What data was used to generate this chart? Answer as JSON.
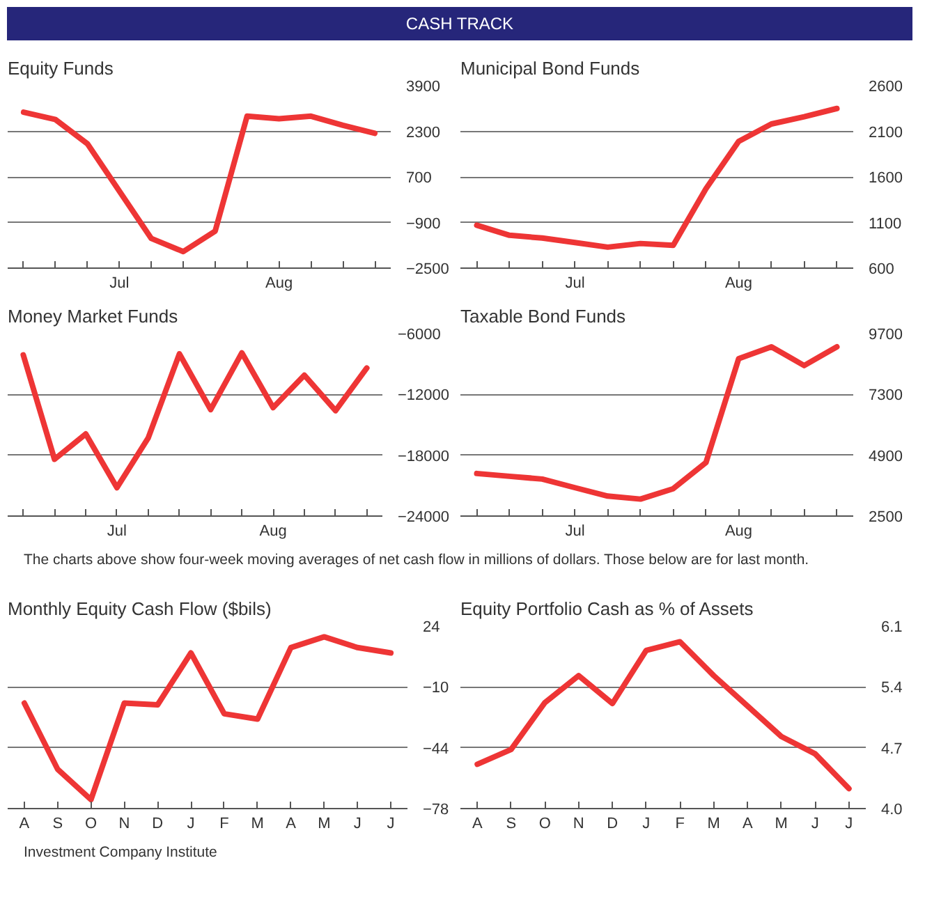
{
  "chart_data": [
    {
      "type": "other",
      "title": "CASH TRACK"
    },
    {
      "type": "line",
      "title": "Equity Funds",
      "color": "#ee3535",
      "grid": "y",
      "categories": [
        null,
        null,
        null,
        "Jul",
        null,
        null,
        null,
        null,
        "Aug",
        null,
        null,
        null
      ],
      "values": [
        2970,
        2710,
        1860,
        200,
        -1460,
        -1920,
        -1200,
        2830,
        2740,
        2830,
        2510,
        2230
      ],
      "ylim": [
        -2500,
        3900
      ],
      "yticks": [
        -2500,
        -900,
        700,
        2300,
        3900
      ]
    },
    {
      "type": "line",
      "title": "Municipal Bond Funds",
      "color": "#ee3535",
      "grid": "y",
      "categories": [
        null,
        null,
        null,
        "Jul",
        null,
        null,
        null,
        null,
        "Aug",
        null,
        null,
        null
      ],
      "values": [
        1070,
        960,
        930,
        880,
        830,
        870,
        850,
        1470,
        1990,
        2180,
        2260,
        2350
      ],
      "ylim": [
        600,
        2600
      ],
      "yticks": [
        600,
        1100,
        1600,
        2100,
        2600
      ]
    },
    {
      "type": "line",
      "title": "Money Market Funds",
      "color": "#ee3535",
      "grid": "y",
      "categories": [
        null,
        null,
        null,
        "Jul",
        null,
        null,
        null,
        null,
        "Aug",
        null,
        null,
        null
      ],
      "values": [
        -8100,
        -18400,
        -15900,
        -21200,
        -16300,
        -8000,
        -13500,
        -7900,
        -13300,
        -10100,
        -13600,
        -9400
      ],
      "ylim": [
        -24000,
        -6000
      ],
      "yticks": [
        -24000,
        -18000,
        -12000,
        -6000
      ]
    },
    {
      "type": "line",
      "title": "Taxable Bond Funds",
      "color": "#ee3535",
      "grid": "y",
      "categories": [
        null,
        null,
        null,
        "Jul",
        null,
        null,
        null,
        null,
        "Aug",
        null,
        null,
        null
      ],
      "values": [
        4180,
        4070,
        3960,
        3620,
        3290,
        3170,
        3580,
        4610,
        8710,
        9180,
        8440,
        9180
      ],
      "ylim": [
        2500,
        9700
      ],
      "yticks": [
        2500,
        4900,
        7300,
        9700
      ]
    },
    {
      "type": "other",
      "annotations": [
        "The charts above show four-week moving averages of net cash flow in millions of dollars. Those below are for last month."
      ]
    },
    {
      "type": "line",
      "title": "Monthly Equity Cash Flow ($bils)",
      "color": "#ee3535",
      "grid": "y",
      "categories": [
        "A",
        "S",
        "O",
        "N",
        "D",
        "J",
        "F",
        "M",
        "A",
        "M",
        "J",
        "J"
      ],
      "values": [
        -19,
        -56,
        -73,
        -19,
        -20,
        9,
        -25,
        -28,
        12,
        18,
        12,
        9
      ],
      "ylim": [
        -78,
        24
      ],
      "yticks": [
        -78,
        -44,
        -10,
        24
      ]
    },
    {
      "type": "line",
      "title": "Equity Portfolio Cash as % of Assets",
      "color": "#ee3535",
      "grid": "y",
      "categories": [
        "A",
        "S",
        "O",
        "N",
        "D",
        "J",
        "F",
        "M",
        "A",
        "M",
        "J",
        "J"
      ],
      "values": [
        4.51,
        4.68,
        5.22,
        5.53,
        5.21,
        5.82,
        5.92,
        5.53,
        5.18,
        4.83,
        4.63,
        4.23
      ],
      "ylim": [
        4.0,
        6.1
      ],
      "yticks": [
        {
          "value": 4.0,
          "label": "4.0"
        },
        4.7,
        5.4,
        6.1
      ]
    },
    {
      "type": "other",
      "annotations": [
        "Investment Company Institute"
      ]
    }
  ]
}
